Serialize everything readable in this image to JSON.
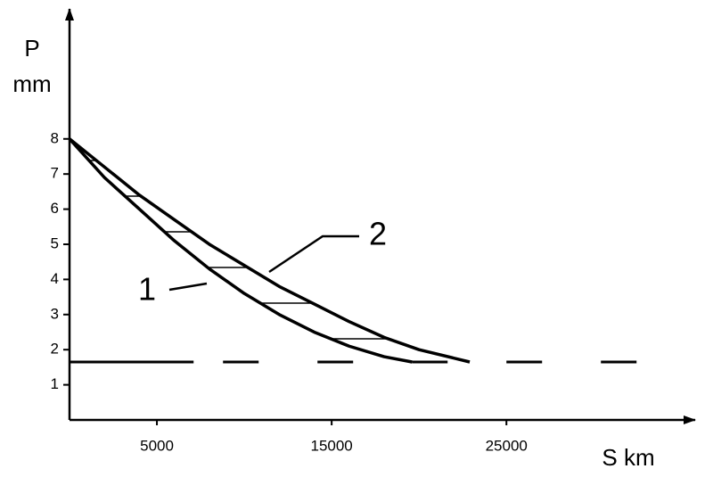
{
  "chart_data": {
    "type": "line",
    "y_label": [
      "P",
      "mm"
    ],
    "x_label": "S km",
    "xlim": [
      0,
      35800
    ],
    "ylim": [
      0,
      11.7
    ],
    "xticks": [
      5000,
      15000,
      25000
    ],
    "yticks": [
      1,
      2,
      3,
      4,
      5,
      6,
      7,
      8
    ],
    "series": [
      {
        "name": "1",
        "color": "#000000",
        "x": [
          0,
          2000,
          4000,
          6000,
          8000,
          10000,
          12000,
          14000,
          16000,
          18000,
          19600
        ],
        "values": [
          8,
          6.9,
          6.0,
          5.1,
          4.3,
          3.6,
          3.0,
          2.5,
          2.1,
          1.8,
          1.65
        ]
      },
      {
        "name": "2",
        "color": "#000000",
        "x": [
          0,
          2000,
          4000,
          6000,
          8000,
          10000,
          12000,
          14000,
          16000,
          18000,
          20000,
          22900
        ],
        "values": [
          8,
          7.2,
          6.4,
          5.7,
          5.0,
          4.4,
          3.8,
          3.3,
          2.8,
          2.35,
          2.0,
          1.65
        ]
      }
    ],
    "reference_lines": [
      {
        "x": [
          0,
          7100
        ],
        "y": 1.65,
        "style": "solid"
      },
      {
        "x": [
          7100,
          33000
        ],
        "y": 1.65,
        "style": "dashed"
      }
    ]
  }
}
